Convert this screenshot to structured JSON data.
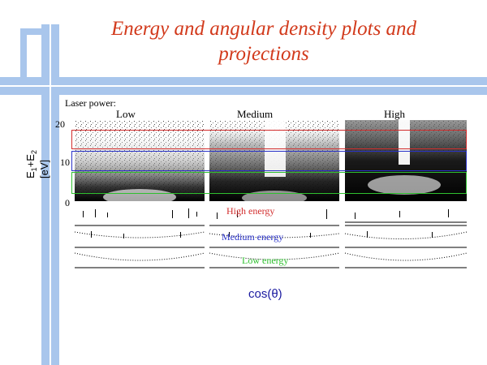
{
  "slide": {
    "title": "Energy and angular density plots and projections",
    "laser_power_label": "Laser power:",
    "columns": [
      "Low",
      "Medium",
      "High"
    ],
    "y_axis": {
      "label_main": "E",
      "sub1": "1",
      "plus": "+E",
      "sub2": "2",
      "unit": "[eV]",
      "ticks": [
        "20",
        "10",
        "0"
      ]
    },
    "bands": [
      {
        "label": "High energy",
        "color": "#d22d2d"
      },
      {
        "label": "Medium energy",
        "color": "#2a32c8"
      },
      {
        "label": "Low energy",
        "color": "#2fc02f"
      }
    ],
    "x_axis_label": "cos(θ)"
  },
  "colors": {
    "title": "#d23a1c",
    "frame": "#a9c6ec"
  }
}
